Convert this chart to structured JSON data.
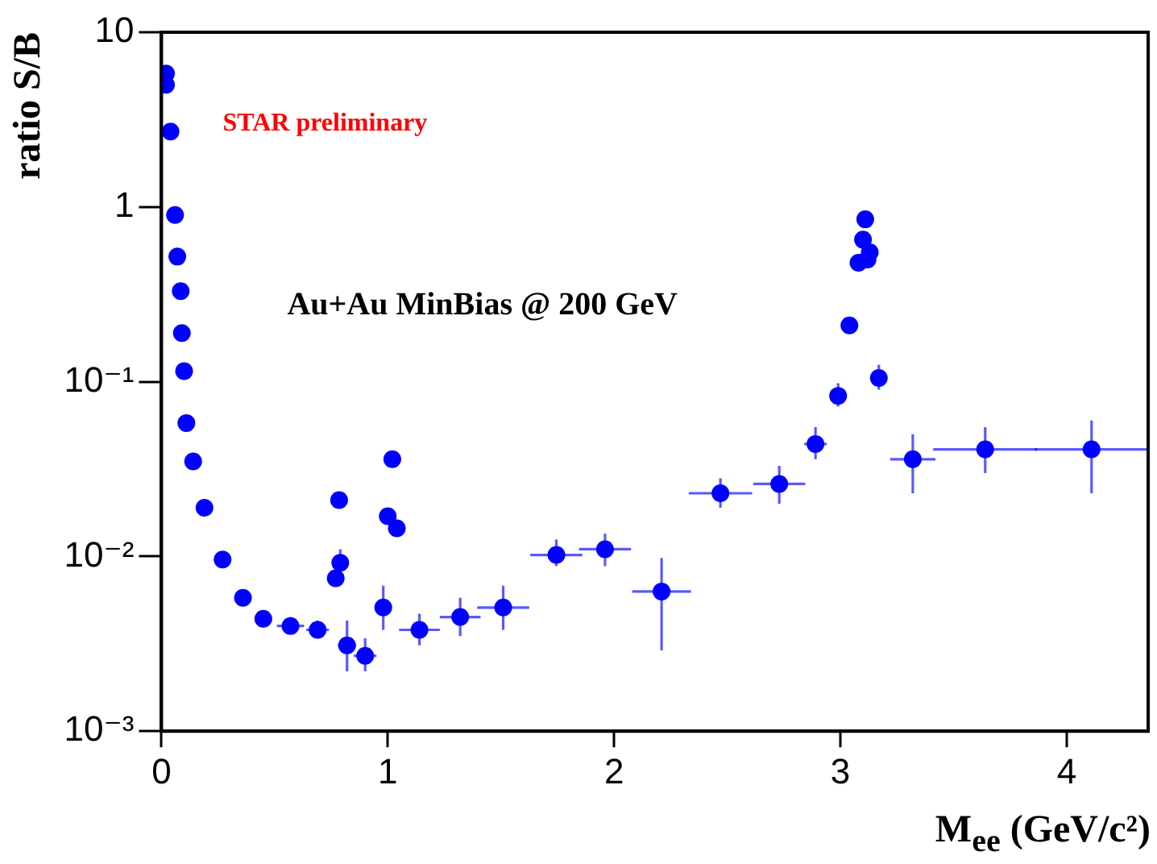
{
  "chart_data": {
    "type": "scatter",
    "xlabel": "M$_{ee}$ (GeV/c²)",
    "ylabel": "ratio S/B",
    "annotations": [
      "STAR preliminary",
      "Au+Au MinBias @ 200 GeV"
    ],
    "log": "y",
    "grid": false,
    "legend": false,
    "marker": "circle",
    "xlim": [
      0,
      4.36
    ],
    "xticks": [
      0,
      1,
      2,
      3,
      4
    ],
    "ylim": [
      0.001,
      10
    ],
    "yticks": [
      {
        "value": 0.001,
        "label": "10⁻³"
      },
      {
        "value": 0.01,
        "label": "10⁻²"
      },
      {
        "value": 0.1,
        "label": "10⁻¹"
      },
      1,
      10
    ],
    "series": [
      {
        "color": "#0000ff",
        "x": [
          0.02,
          0.02,
          0.04,
          0.06,
          0.07,
          0.085,
          0.09,
          0.1,
          0.11,
          0.14,
          0.19,
          0.27,
          0.36,
          0.45,
          0.57,
          0.69,
          0.77,
          0.785,
          0.79,
          0.82,
          0.9,
          0.98,
          1.0,
          1.02,
          1.04,
          1.14,
          1.32,
          1.51,
          1.745,
          1.96,
          2.21,
          2.47,
          2.73,
          2.89,
          2.99,
          3.04,
          3.06,
          3.08,
          3.09,
          3.1,
          3.11,
          3.12,
          3.13,
          3.17,
          3.32,
          3.64,
          4.11
        ],
        "values": [
          5.8,
          5.0,
          2.7,
          0.9,
          0.52,
          0.33,
          0.19,
          0.115,
          0.058,
          0.035,
          0.019,
          0.0096,
          0.0058,
          0.0044,
          0.004,
          0.0038,
          0.0075,
          0.021,
          0.0092,
          0.0031,
          0.0027,
          0.0051,
          0.017,
          0.036,
          0.0145,
          0.0038,
          0.0045,
          0.0051,
          0.0102,
          0.011,
          0.0063,
          0.023,
          0.026,
          0.044,
          0.083,
          0.21,
          null,
          0.48,
          null,
          0.65,
          0.85,
          0.5,
          0.55,
          0.105,
          0.036,
          0.041,
          0.041
        ],
        "errors": [
          null,
          null,
          null,
          null,
          null,
          null,
          null,
          null,
          null,
          null,
          null,
          null,
          null,
          null,
          [
            0.0036,
            0.0045
          ],
          [
            0.0034,
            0.0043
          ],
          null,
          null,
          [
            0.008,
            0.011
          ],
          [
            0.0022,
            0.0043
          ],
          [
            0.0022,
            0.0034
          ],
          [
            0.0038,
            0.0068
          ],
          null,
          null,
          null,
          [
            0.0031,
            0.0047
          ],
          [
            0.0035,
            0.0058
          ],
          [
            0.0038,
            0.0068
          ],
          [
            0.0088,
            0.0125
          ],
          [
            0.0088,
            0.0135
          ],
          [
            0.0029,
            0.0098
          ],
          [
            0.019,
            0.028
          ],
          [
            0.02,
            0.033
          ],
          [
            0.036,
            0.055
          ],
          [
            0.072,
            0.098
          ],
          null,
          null,
          null,
          null,
          null,
          null,
          null,
          null,
          [
            0.09,
            0.125
          ],
          [
            0.023,
            0.05
          ],
          [
            0.03,
            0.055
          ],
          [
            0.023,
            0.06
          ]
        ],
        "xerrors": [
          null,
          null,
          null,
          null,
          null,
          null,
          null,
          null,
          null,
          null,
          null,
          null,
          null,
          null,
          0.06,
          0.05,
          null,
          null,
          null,
          0.04,
          0.05,
          null,
          null,
          null,
          null,
          0.09,
          0.09,
          0.115,
          0.115,
          0.115,
          0.13,
          0.14,
          0.115,
          0.05,
          null,
          null,
          null,
          null,
          null,
          null,
          null,
          null,
          null,
          null,
          0.1,
          0.23,
          0.25
        ]
      }
    ]
  }
}
